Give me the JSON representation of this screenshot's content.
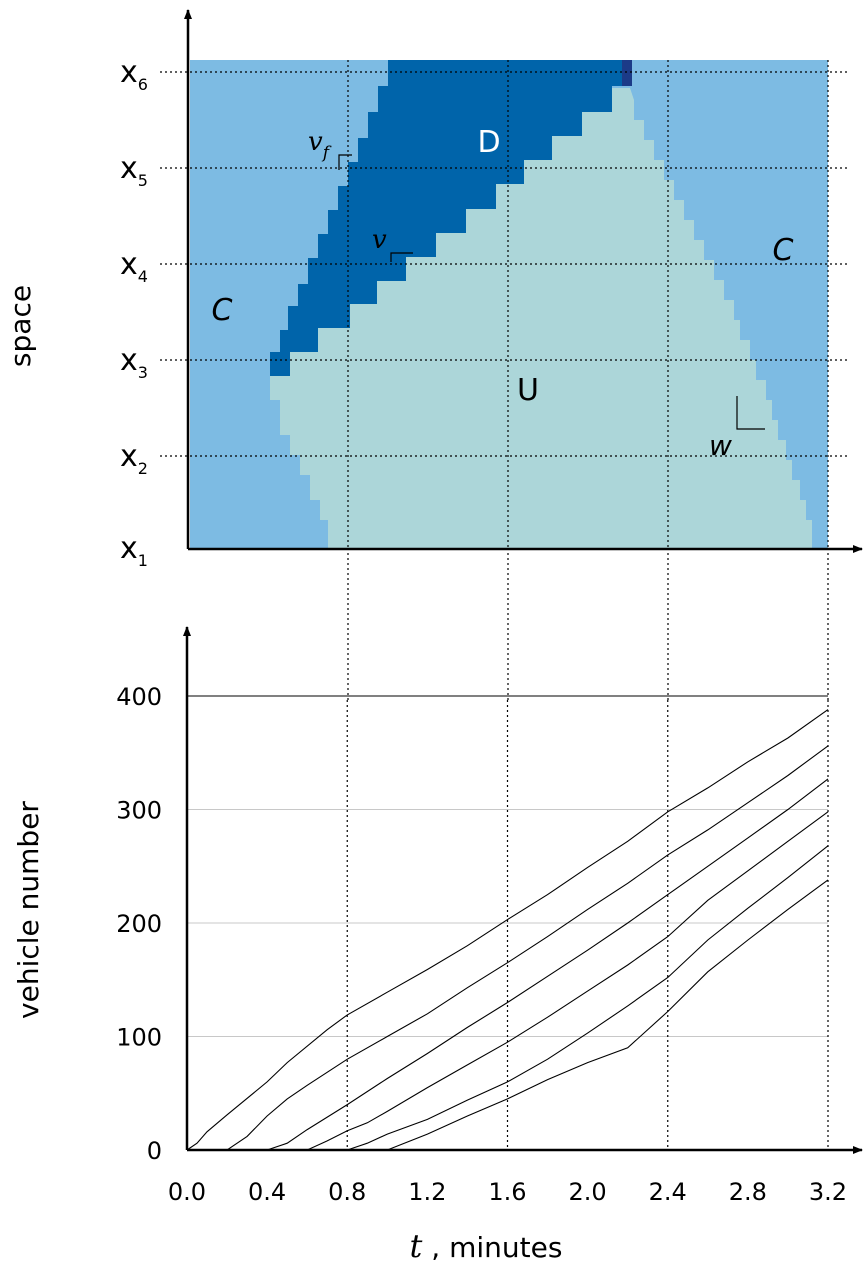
{
  "chart_data": [
    {
      "type": "heatmap",
      "title": "",
      "ylabel": "space",
      "y_tick_labels": [
        {
          "main": "x",
          "sub": "1"
        },
        {
          "main": "x",
          "sub": "2"
        },
        {
          "main": "x",
          "sub": "3"
        },
        {
          "main": "x",
          "sub": "4"
        },
        {
          "main": "x",
          "sub": "5"
        },
        {
          "main": "x",
          "sub": "6"
        }
      ],
      "xlim": [
        0,
        3.2
      ],
      "grid_x": [
        0.8,
        1.6,
        2.4,
        3.2
      ],
      "colors": {
        "congested": "#7dbbe3",
        "discharge": "#0064aa",
        "uncongested": "#acd6d9",
        "jam": "#1c3b88"
      },
      "regions": [
        {
          "id": "C-left",
          "label": "C",
          "state": "congested"
        },
        {
          "id": "D",
          "label": "D",
          "state": "discharge"
        },
        {
          "id": "U",
          "label": "U",
          "state": "uncongested"
        },
        {
          "id": "C-right",
          "label": "C",
          "state": "congested"
        }
      ],
      "wave_labels": [
        {
          "main": "v",
          "sub": "f"
        },
        {
          "main": "v",
          "sub": ""
        },
        {
          "main": "w",
          "sub": ""
        }
      ]
    },
    {
      "type": "line",
      "title": "",
      "xlabel_var": "t",
      "xlabel_rest": " , minutes",
      "ylabel": "vehicle number",
      "xlim": [
        0,
        3.2
      ],
      "ylim": [
        0,
        400
      ],
      "x_ticks": [
        "0.0",
        "0.4",
        "0.8",
        "1.2",
        "1.6",
        "2.0",
        "2.4",
        "2.8",
        "3.2"
      ],
      "y_ticks": [
        "0",
        "100",
        "200",
        "300",
        "400"
      ],
      "grid": true,
      "series": [
        {
          "x": [
            0,
            0.05,
            0.1,
            0.2,
            0.4,
            0.5,
            0.7,
            0.8,
            1.0,
            1.2,
            1.4,
            1.6,
            1.8,
            2.0,
            2.2,
            2.4,
            2.6,
            2.8,
            3.0,
            3.2
          ],
          "values": [
            0,
            6,
            16,
            31,
            60,
            77,
            106,
            119,
            139,
            159,
            180,
            203,
            225,
            249,
            272,
            298,
            319,
            342,
            363,
            388
          ]
        },
        {
          "x": [
            0,
            0.2,
            0.3,
            0.4,
            0.5,
            0.6,
            0.8,
            1.0,
            1.2,
            1.4,
            1.6,
            1.8,
            2.0,
            2.2,
            2.4,
            2.6,
            2.8,
            3.0,
            3.2
          ],
          "values": [
            0,
            0,
            12,
            30,
            45,
            57,
            80,
            100,
            120,
            143,
            165,
            188,
            212,
            235,
            260,
            282,
            306,
            330,
            356
          ]
        },
        {
          "x": [
            0,
            0.4,
            0.5,
            0.6,
            0.8,
            1.0,
            1.2,
            1.4,
            1.6,
            1.8,
            2.0,
            2.2,
            2.4,
            2.6,
            2.8,
            3.0,
            3.2
          ],
          "values": [
            0,
            0,
            6,
            18,
            40,
            63,
            85,
            108,
            130,
            153,
            176,
            200,
            225,
            250,
            275,
            300,
            327
          ]
        },
        {
          "x": [
            0,
            0.6,
            0.7,
            0.8,
            0.9,
            1.0,
            1.2,
            1.4,
            1.6,
            1.8,
            2.0,
            2.2,
            2.4,
            2.6,
            2.8,
            3.0,
            3.2
          ],
          "values": [
            0,
            0,
            8,
            17,
            24,
            34,
            55,
            75,
            95,
            117,
            140,
            163,
            188,
            220,
            246,
            272,
            298
          ]
        },
        {
          "x": [
            0,
            0.8,
            0.9,
            1.0,
            1.2,
            1.4,
            1.6,
            1.8,
            2.0,
            2.2,
            2.4,
            2.6,
            2.8,
            3.0,
            3.2
          ],
          "values": [
            0,
            0,
            6,
            14,
            27,
            44,
            60,
            80,
            103,
            127,
            152,
            185,
            213,
            240,
            268
          ]
        },
        {
          "x": [
            0,
            1.0,
            1.2,
            1.4,
            1.6,
            1.8,
            2.0,
            2.2,
            2.4,
            2.6,
            2.8,
            3.0,
            3.2
          ],
          "values": [
            0,
            0,
            14,
            30,
            45,
            62,
            77,
            90,
            122,
            157,
            185,
            212,
            238
          ]
        }
      ]
    }
  ]
}
